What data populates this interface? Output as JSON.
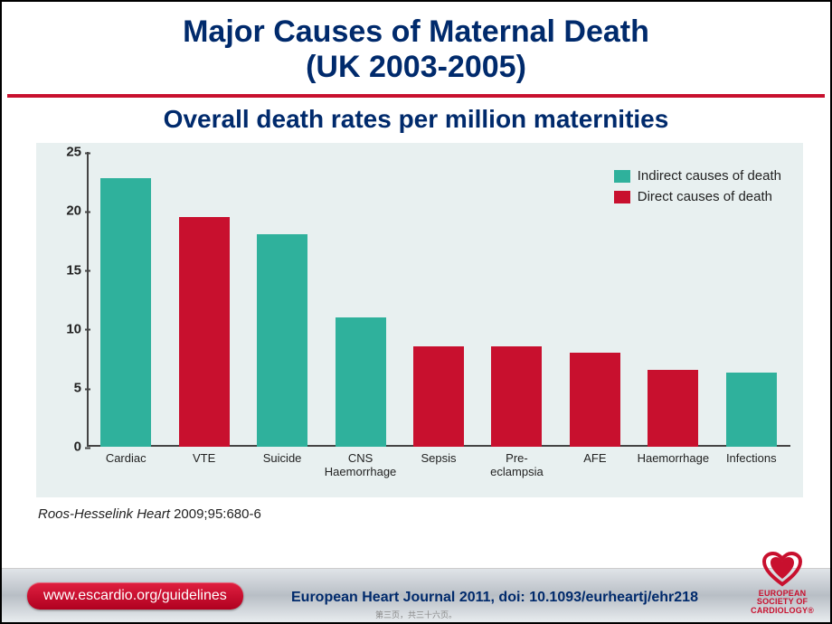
{
  "title_line1": "Major Causes of Maternal Death",
  "title_line2": "(UK 2003-2005)",
  "subtitle": "Overall death rates per million maternities",
  "chart": {
    "type": "bar",
    "background_color": "#e8f0f0",
    "ylim": [
      0,
      25
    ],
    "ytick_step": 5,
    "yticks": [
      "0",
      "5",
      "10",
      "15",
      "20",
      "25"
    ],
    "axis_color": "#444444",
    "tick_fontsize": 15,
    "label_fontsize": 13,
    "bar_width_pct": 7.2,
    "colors": {
      "indirect": "#2fb19c",
      "direct": "#c8102e"
    },
    "series": [
      {
        "label": "Cardiac",
        "value": 22.8,
        "kind": "indirect"
      },
      {
        "label": "VTE",
        "value": 19.5,
        "kind": "direct"
      },
      {
        "label": "Suicide",
        "value": 18.0,
        "kind": "indirect"
      },
      {
        "label": "CNS\nHaemorrhage",
        "value": 11.0,
        "kind": "indirect"
      },
      {
        "label": "Sepsis",
        "value": 8.5,
        "kind": "direct"
      },
      {
        "label": "Pre-\neclampsia",
        "value": 8.5,
        "kind": "direct"
      },
      {
        "label": "AFE",
        "value": 8.0,
        "kind": "direct"
      },
      {
        "label": "Haemorrhage",
        "value": 6.5,
        "kind": "direct"
      },
      {
        "label": "Infections",
        "value": 6.3,
        "kind": "indirect"
      }
    ],
    "legend": [
      {
        "swatch": "#2fb19c",
        "text": "Indirect causes of death"
      },
      {
        "swatch": "#c8102e",
        "text": "Direct causes of death"
      }
    ]
  },
  "citation_italic": "Roos-Hesselink Heart ",
  "citation_rest": "2009;95:680-6",
  "footer": {
    "url": "www.escardio.org/guidelines",
    "journal": "European Heart Journal 2011, doi: 10.1093/eurheartj/ehr218",
    "logo_line1": "EUROPEAN",
    "logo_line2": "SOCIETY OF",
    "logo_line3": "CARDIOLOGY",
    "logo_reg": "®"
  },
  "pagenote": "第三页，共三十六页。"
}
